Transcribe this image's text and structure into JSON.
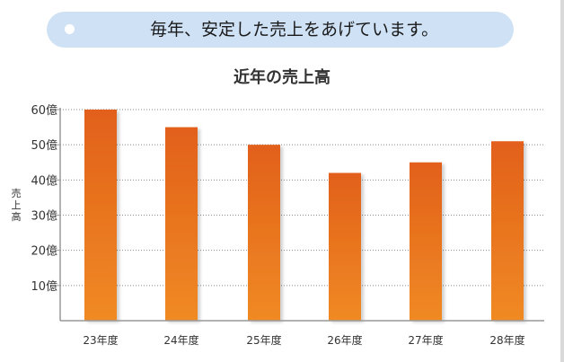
{
  "banner": {
    "text": "毎年、安定した売上をあげています。"
  },
  "chart_data": {
    "type": "bar",
    "title": "近年の売上高",
    "ylabel": "売上高",
    "xlabel": "",
    "categories": [
      "23年度",
      "24年度",
      "25年度",
      "26年度",
      "27年度",
      "28年度"
    ],
    "values": [
      60,
      55,
      50,
      42,
      45,
      51
    ],
    "ylim": [
      0,
      60
    ],
    "yticks": [
      "10億",
      "20億",
      "30億",
      "40億",
      "50億",
      "60億"
    ],
    "grid": true,
    "legend": "none",
    "bar_color": "#f08a24",
    "bar_color_top": "#e2601a"
  }
}
